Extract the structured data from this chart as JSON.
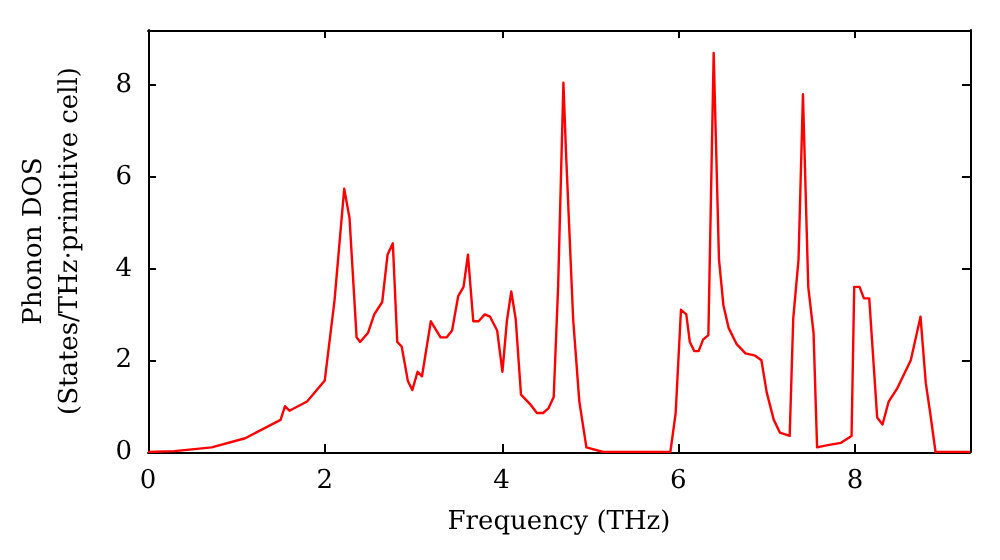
{
  "chart_data": {
    "type": "line",
    "xlabel": "Frequency (THz)",
    "ylabel": "Phonon DOS\n(States/THz·primitive cell)",
    "xlim": [
      0,
      9.3
    ],
    "ylim": [
      0,
      9.2
    ],
    "xticks": [
      0,
      2,
      4,
      6,
      8
    ],
    "yticks": [
      0,
      2,
      4,
      6,
      8
    ],
    "marker": "none",
    "line_style": "solid",
    "series": [
      {
        "color": "#ff0000",
        "x": [
          0,
          0.3,
          0.72,
          1.1,
          1.5,
          1.55,
          1.6,
          1.8,
          2.0,
          2.11,
          2.22,
          2.28,
          2.36,
          2.4,
          2.49,
          2.56,
          2.65,
          2.71,
          2.77,
          2.82,
          2.87,
          2.94,
          2.99,
          3.05,
          3.1,
          3.2,
          3.31,
          3.38,
          3.44,
          3.51,
          3.57,
          3.62,
          3.68,
          3.74,
          3.81,
          3.87,
          3.95,
          4.01,
          4.06,
          4.11,
          4.16,
          4.22,
          4.32,
          4.4,
          4.47,
          4.53,
          4.59,
          4.64,
          4.7,
          4.73,
          4.81,
          4.88,
          4.96,
          5.15,
          5.91,
          5.97,
          6.03,
          6.09,
          6.13,
          6.18,
          6.23,
          6.28,
          6.34,
          6.4,
          6.46,
          6.51,
          6.57,
          6.66,
          6.76,
          6.87,
          6.94,
          7.0,
          7.08,
          7.15,
          7.26,
          7.3,
          7.36,
          7.41,
          7.47,
          7.53,
          7.57,
          7.69,
          7.84,
          7.96,
          7.99,
          8.05,
          8.1,
          8.16,
          8.25,
          8.31,
          8.38,
          8.48,
          8.63,
          8.74,
          8.8,
          8.85,
          8.91,
          9.3
        ],
        "values": [
          0,
          0.02,
          0.1,
          0.3,
          0.7,
          1.0,
          0.9,
          1.1,
          1.56,
          3.3,
          5.74,
          5.1,
          2.5,
          2.4,
          2.6,
          3.0,
          3.27,
          4.3,
          4.55,
          2.4,
          2.3,
          1.55,
          1.35,
          1.75,
          1.65,
          2.85,
          2.5,
          2.5,
          2.65,
          3.4,
          3.6,
          4.3,
          2.85,
          2.85,
          3.0,
          2.95,
          2.65,
          1.75,
          2.85,
          3.5,
          2.9,
          1.25,
          1.05,
          0.85,
          0.85,
          0.95,
          1.2,
          3.6,
          8.05,
          6.5,
          2.9,
          1.1,
          0.1,
          0,
          0,
          0.85,
          3.1,
          3.0,
          2.4,
          2.2,
          2.2,
          2.45,
          2.55,
          8.7,
          4.2,
          3.2,
          2.7,
          2.35,
          2.15,
          2.1,
          2.0,
          1.3,
          0.7,
          0.42,
          0.35,
          2.9,
          4.2,
          7.8,
          3.6,
          2.6,
          0.1,
          0.15,
          0.2,
          0.35,
          3.6,
          3.6,
          3.35,
          3.35,
          0.75,
          0.6,
          1.1,
          1.4,
          2.0,
          2.95,
          1.5,
          0.85,
          0,
          0
        ]
      }
    ]
  }
}
